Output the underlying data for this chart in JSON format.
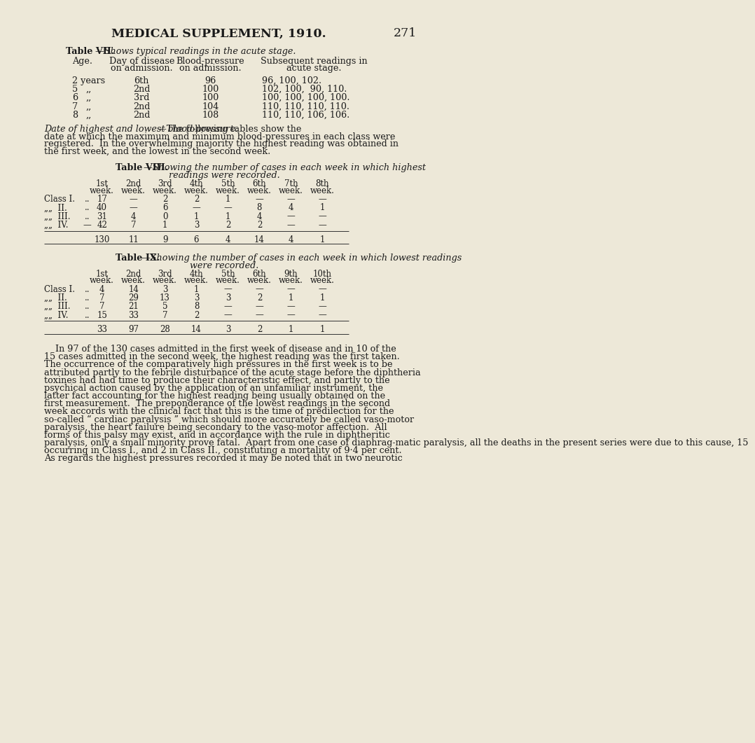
{
  "bg_color": "#ede8d8",
  "text_color": "#1a1a1a",
  "page_header": "MEDICAL SUPPLEMENT, 1910.",
  "page_number": "271",
  "header_fontsize": 12.5,
  "body_fontsize": 9.2,
  "small_fontsize": 8.5,
  "table7_rows": [
    [
      "2 years",
      "6th",
      "96",
      "96, 100, 102."
    ],
    [
      "5",
      "2nd",
      "100",
      "102, 100,  90, 110."
    ],
    [
      "6",
      "3rd",
      "100",
      "100, 100, 100, 100."
    ],
    [
      "7",
      "2nd",
      "104",
      "110, 110, 110, 110."
    ],
    [
      "8",
      "2nd",
      "108",
      "110, 110, 106, 106."
    ]
  ],
  "table8_week_headers": [
    "1st",
    "2nd",
    "3rd",
    "4th",
    "5th",
    "6th",
    "7th",
    "8th"
  ],
  "table8_rows": [
    [
      "Class I.",
      "..",
      "17",
      "—",
      "2",
      "2",
      "1",
      "—",
      "—",
      "—"
    ],
    [
      "„„  II.",
      "..",
      "40",
      "—",
      "6",
      "—",
      "—",
      "8",
      "4",
      "1"
    ],
    [
      "„„  III.",
      "..",
      "31",
      "4",
      "0",
      "1",
      "1",
      "4",
      "—",
      "—"
    ],
    [
      "„„  IV.",
      "—",
      "42",
      "7",
      "1",
      "3",
      "2",
      "2",
      "—",
      "—"
    ]
  ],
  "table8_totals": [
    "130",
    "11",
    "9",
    "6",
    "4",
    "14",
    "4",
    "1"
  ],
  "table9_week_headers": [
    "1st",
    "2nd",
    "3rd",
    "4th",
    "5th",
    "6th",
    "9th",
    "10th"
  ],
  "table9_rows": [
    [
      "Class I.",
      "..",
      "4",
      "14",
      "3",
      "1",
      "—",
      "—",
      "—",
      "—"
    ],
    [
      "„„  II.",
      "..",
      "7",
      "29",
      "13",
      "3",
      "3",
      "2",
      "1",
      "1"
    ],
    [
      "„„  III.",
      "..",
      "7",
      "21",
      "5",
      "8",
      "—",
      "—",
      "—",
      "—"
    ],
    [
      "„„  IV.",
      "..",
      "15",
      "33",
      "7",
      "2",
      "—",
      "—",
      "—",
      "—"
    ]
  ],
  "table9_totals": [
    "33",
    "97",
    "28",
    "14",
    "3",
    "2",
    "1",
    "1"
  ],
  "body_lines": [
    "    In 97 of the 130 cases admitted in the first week of disease and in 10 of the",
    "15 cases admitted in the second week, the highest reading was the first taken.",
    "The occurrence of the comparatively high pressures in the first week is to be",
    "attributed partly to the febrile disturbance of the acute stage before the diphtheria",
    "toxines had had time to produce their characteristic effect, and partly to the",
    "psychical action caused by the application of an unfamiliar instrument, the",
    "latter fact accounting for the highest reading being usually obtained on the",
    "first measurement.  The preponderance of the lowest readings in the second",
    "week accords with the clinical fact that this is the time of predilection for the",
    "so-called “ cardiac paralysis ” which should more accurately be called vaso-motor",
    "paralysis, the heart failure being secondary to the vaso-motor affection.  All",
    "forms of this palsy may exist, and in accordance with the rule in diphtheritic",
    "paralysis, only a small minority prove fatal.  Apart from one case of diaphrag­matic paralysis, all the deaths in the present series were due to this cause, 15",
    "occurring in Class I., and 2 in Class II., constituting a mortality of 9·4 per cent.",
    "As regards the highest pressures recorded it may be noted that in two neurotic"
  ]
}
